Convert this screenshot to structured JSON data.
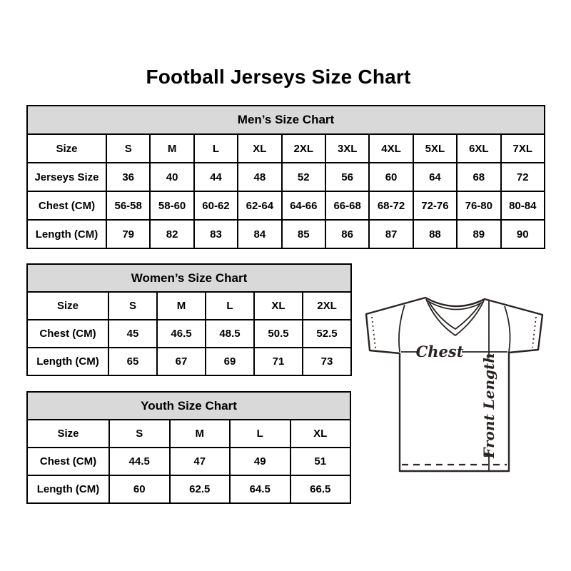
{
  "page": {
    "title": "Football Jerseys Size Chart"
  },
  "tables": {
    "mens": {
      "title": "Men’s Size Chart",
      "rows": [
        {
          "header": "Size",
          "cells": [
            "S",
            "M",
            "L",
            "XL",
            "2XL",
            "3XL",
            "4XL",
            "5XL",
            "6XL",
            "7XL"
          ]
        },
        {
          "header": "Jerseys Size",
          "cells": [
            "36",
            "40",
            "44",
            "48",
            "52",
            "56",
            "60",
            "64",
            "68",
            "72"
          ]
        },
        {
          "header": "Chest (CM)",
          "cells": [
            "56-58",
            "58-60",
            "60-62",
            "62-64",
            "64-66",
            "66-68",
            "68-72",
            "72-76",
            "76-80",
            "80-84"
          ]
        },
        {
          "header": "Length (CM)",
          "cells": [
            "79",
            "82",
            "83",
            "84",
            "85",
            "86",
            "87",
            "88",
            "89",
            "90"
          ]
        }
      ]
    },
    "womens": {
      "title": "Women’s Size Chart",
      "rows": [
        {
          "header": "Size",
          "cells": [
            "S",
            "M",
            "L",
            "XL",
            "2XL"
          ]
        },
        {
          "header": "Chest (CM)",
          "cells": [
            "45",
            "46.5",
            "48.5",
            "50.5",
            "52.5"
          ]
        },
        {
          "header": "Length (CM)",
          "cells": [
            "65",
            "67",
            "69",
            "71",
            "73"
          ]
        }
      ]
    },
    "youth": {
      "title": "Youth Size Chart",
      "rows": [
        {
          "header": "Size",
          "cells": [
            "S",
            "M",
            "L",
            "XL"
          ]
        },
        {
          "header": "Chest (CM)",
          "cells": [
            "44.5",
            "47",
            "49",
            "51"
          ]
        },
        {
          "header": "Length (CM)",
          "cells": [
            "60",
            "62.5",
            "64.5",
            "66.5"
          ]
        }
      ]
    }
  },
  "jersey": {
    "chest_label": "Chest",
    "front_length_label": "Front Length"
  },
  "colors": {
    "background": "#ffffff",
    "text": "#000000",
    "table_border": "#000000",
    "section_header_bg": "#d9d9d9",
    "jersey_line": "#2a2422"
  }
}
